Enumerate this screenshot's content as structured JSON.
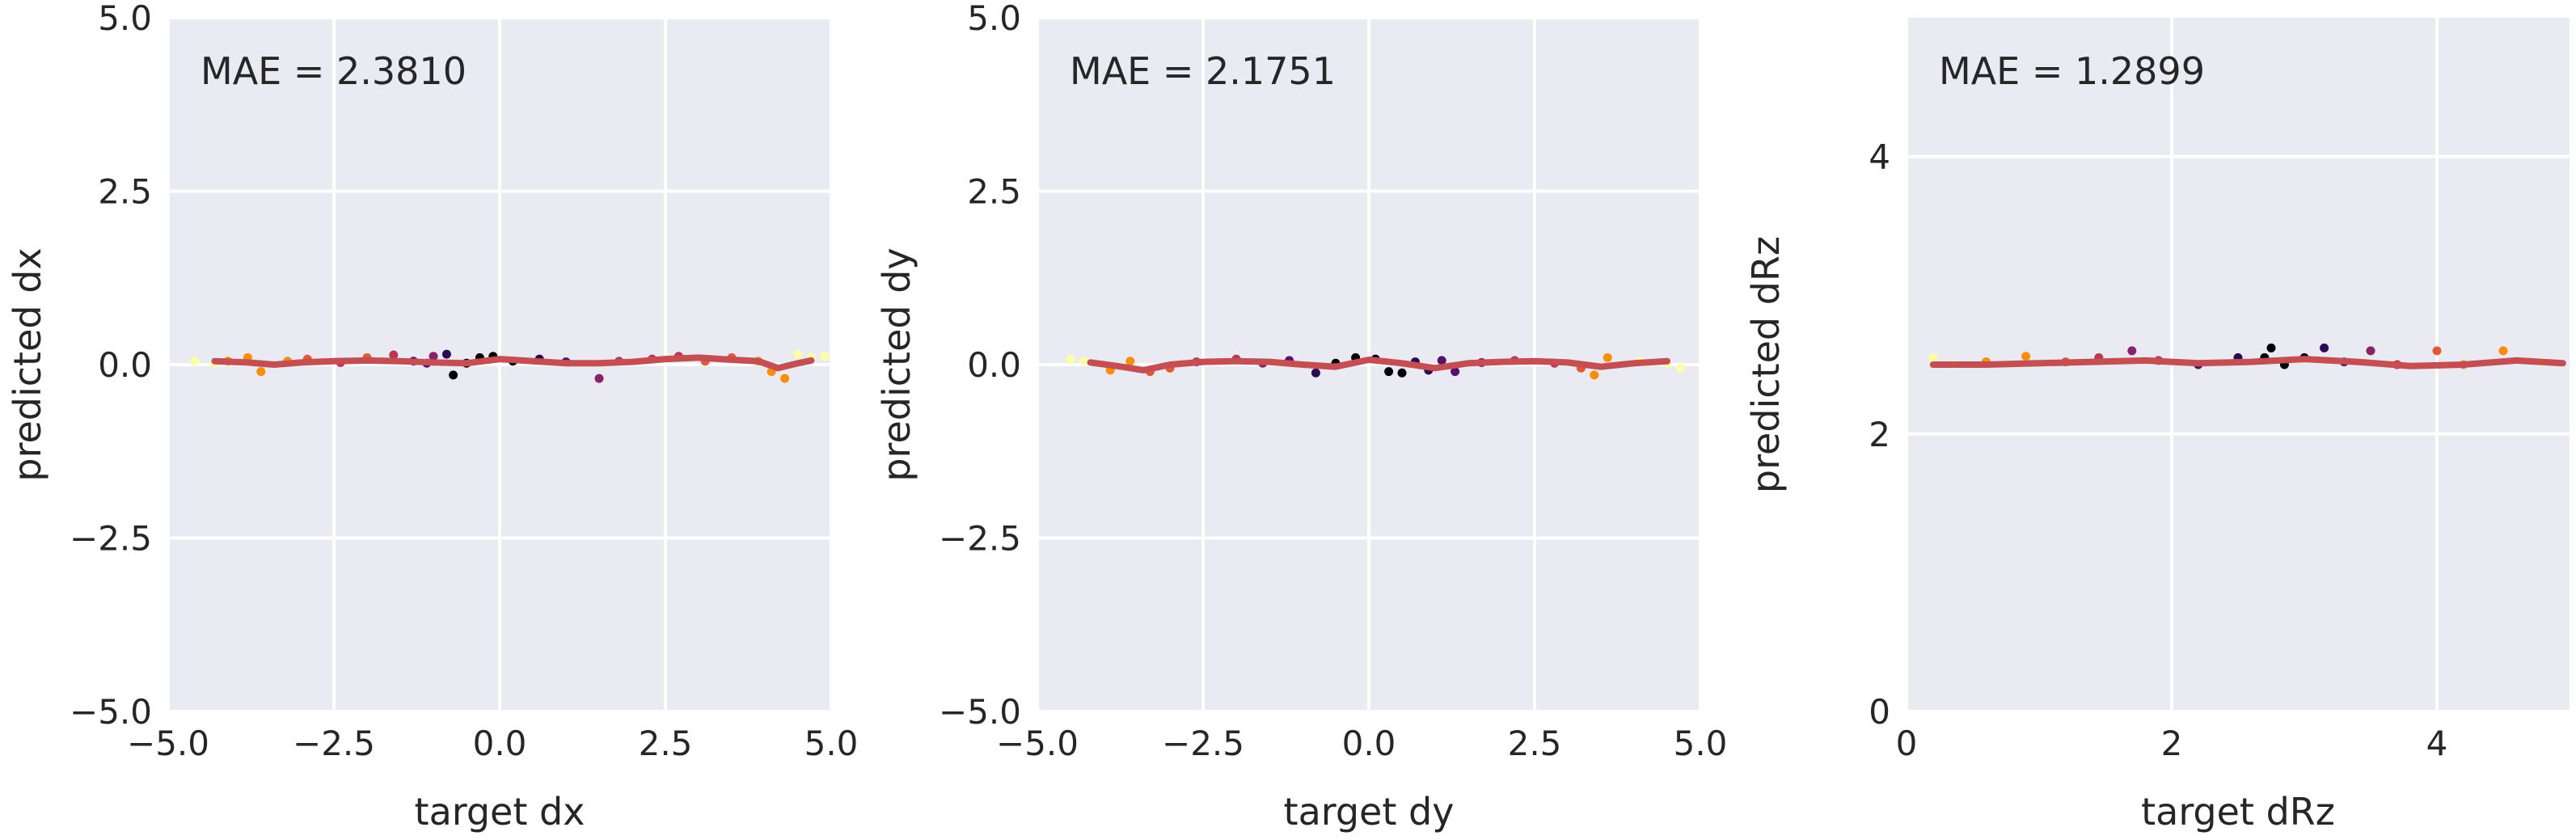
{
  "figure": {
    "background": "#ffffff",
    "panel_bg": "#eaeaf2",
    "grid_color": "#ffffff",
    "trend_color": "#c44e52",
    "text_color": "#262626"
  },
  "chart_data": [
    {
      "type": "scatter",
      "title": "",
      "annotation": "MAE = 2.3810",
      "xlabel": "target dx",
      "ylabel": "predicted dx",
      "xlim": [
        -5.0,
        5.0
      ],
      "ylim": [
        -5.0,
        5.0
      ],
      "xticks": [
        -5.0,
        -2.5,
        0.0,
        2.5,
        5.0
      ],
      "yticks": [
        -5.0,
        -2.5,
        0.0,
        2.5,
        5.0
      ],
      "xtick_labels": [
        "−5.0",
        "−2.5",
        "0.0",
        "2.5",
        "5.0"
      ],
      "ytick_labels": [
        "−5.0",
        "−2.5",
        "0.0",
        "2.5",
        "5.0"
      ],
      "points": [
        {
          "x": -4.6,
          "y": 0.05,
          "c": "#fcffa4"
        },
        {
          "x": -4.3,
          "y": 0.02,
          "c": "#fcffa4"
        },
        {
          "x": -4.1,
          "y": 0.05,
          "c": "#f98e09"
        },
        {
          "x": -3.8,
          "y": 0.1,
          "c": "#f98e09"
        },
        {
          "x": -3.6,
          "y": -0.1,
          "c": "#f98e09"
        },
        {
          "x": -3.2,
          "y": 0.05,
          "c": "#f98e09"
        },
        {
          "x": -2.9,
          "y": 0.08,
          "c": "#e35933"
        },
        {
          "x": -2.4,
          "y": 0.03,
          "c": "#bc3754"
        },
        {
          "x": -2.0,
          "y": 0.1,
          "c": "#e35933"
        },
        {
          "x": -1.6,
          "y": 0.14,
          "c": "#bc3754"
        },
        {
          "x": -1.3,
          "y": 0.05,
          "c": "#57106e"
        },
        {
          "x": -1.1,
          "y": 0.02,
          "c": "#57106e"
        },
        {
          "x": -1.0,
          "y": 0.12,
          "c": "#8a226a"
        },
        {
          "x": -0.8,
          "y": 0.15,
          "c": "#280b54"
        },
        {
          "x": -0.7,
          "y": -0.15,
          "c": "#000004"
        },
        {
          "x": -0.5,
          "y": 0.02,
          "c": "#000004"
        },
        {
          "x": -0.3,
          "y": 0.1,
          "c": "#000004"
        },
        {
          "x": -0.1,
          "y": 0.12,
          "c": "#000004"
        },
        {
          "x": 0.2,
          "y": 0.05,
          "c": "#000004"
        },
        {
          "x": 0.6,
          "y": 0.08,
          "c": "#280b54"
        },
        {
          "x": 1.0,
          "y": 0.04,
          "c": "#57106e"
        },
        {
          "x": 1.5,
          "y": -0.2,
          "c": "#8a226a"
        },
        {
          "x": 1.8,
          "y": 0.05,
          "c": "#bc3754"
        },
        {
          "x": 2.3,
          "y": 0.08,
          "c": "#bc3754"
        },
        {
          "x": 2.7,
          "y": 0.12,
          "c": "#bc3754"
        },
        {
          "x": 3.1,
          "y": 0.05,
          "c": "#e35933"
        },
        {
          "x": 3.5,
          "y": 0.1,
          "c": "#e35933"
        },
        {
          "x": 3.9,
          "y": 0.05,
          "c": "#f98e09"
        },
        {
          "x": 4.1,
          "y": -0.1,
          "c": "#f98e09"
        },
        {
          "x": 4.3,
          "y": -0.2,
          "c": "#f98e09"
        },
        {
          "x": 4.5,
          "y": 0.15,
          "c": "#fcffa4"
        },
        {
          "x": 4.7,
          "y": 0.1,
          "c": "#fcffa4"
        },
        {
          "x": 4.9,
          "y": 0.12,
          "c": "#fcffa4"
        }
      ],
      "trend": {
        "x": [
          -4.3,
          -3.8,
          -3.4,
          -3.0,
          -2.5,
          -2.0,
          -1.5,
          -1.0,
          -0.5,
          0.0,
          0.5,
          1.0,
          1.5,
          2.0,
          2.5,
          3.0,
          3.5,
          3.9,
          4.2,
          4.5,
          4.7
        ],
        "y": [
          0.05,
          0.03,
          0.0,
          0.03,
          0.05,
          0.06,
          0.05,
          0.03,
          0.02,
          0.08,
          0.05,
          0.02,
          0.02,
          0.04,
          0.08,
          0.1,
          0.07,
          0.05,
          -0.05,
          0.02,
          0.06
        ]
      }
    },
    {
      "type": "scatter",
      "title": "",
      "annotation": "MAE = 2.1751",
      "xlabel": "target dy",
      "ylabel": "predicted dy",
      "xlim": [
        -5.0,
        5.0
      ],
      "ylim": [
        -5.0,
        5.0
      ],
      "xticks": [
        -5.0,
        -2.5,
        0.0,
        2.5,
        5.0
      ],
      "yticks": [
        -5.0,
        -2.5,
        0.0,
        2.5,
        5.0
      ],
      "xtick_labels": [
        "−5.0",
        "−2.5",
        "0.0",
        "2.5",
        "5.0"
      ],
      "ytick_labels": [
        "−5.0",
        "−2.5",
        "0.0",
        "2.5",
        "5.0"
      ],
      "points": [
        {
          "x": -4.5,
          "y": 0.08,
          "c": "#fcffa4"
        },
        {
          "x": -4.3,
          "y": 0.05,
          "c": "#fcffa4"
        },
        {
          "x": -3.9,
          "y": -0.08,
          "c": "#f98e09"
        },
        {
          "x": -3.6,
          "y": 0.05,
          "c": "#f98e09"
        },
        {
          "x": -3.3,
          "y": -0.1,
          "c": "#e35933"
        },
        {
          "x": -3.0,
          "y": -0.05,
          "c": "#e35933"
        },
        {
          "x": -2.6,
          "y": 0.04,
          "c": "#bc3754"
        },
        {
          "x": -2.0,
          "y": 0.08,
          "c": "#bc3754"
        },
        {
          "x": -1.6,
          "y": 0.02,
          "c": "#8a226a"
        },
        {
          "x": -1.2,
          "y": 0.06,
          "c": "#57106e"
        },
        {
          "x": -0.8,
          "y": -0.12,
          "c": "#280b54"
        },
        {
          "x": -0.5,
          "y": 0.02,
          "c": "#000004"
        },
        {
          "x": -0.2,
          "y": 0.1,
          "c": "#000004"
        },
        {
          "x": 0.1,
          "y": 0.08,
          "c": "#000004"
        },
        {
          "x": 0.3,
          "y": -0.1,
          "c": "#000004"
        },
        {
          "x": 0.5,
          "y": -0.12,
          "c": "#000004"
        },
        {
          "x": 0.7,
          "y": 0.04,
          "c": "#280b54"
        },
        {
          "x": 0.9,
          "y": -0.08,
          "c": "#280b54"
        },
        {
          "x": 1.1,
          "y": 0.06,
          "c": "#57106e"
        },
        {
          "x": 1.3,
          "y": -0.1,
          "c": "#57106e"
        },
        {
          "x": 1.7,
          "y": 0.03,
          "c": "#8a226a"
        },
        {
          "x": 2.2,
          "y": 0.06,
          "c": "#bc3754"
        },
        {
          "x": 2.8,
          "y": 0.02,
          "c": "#bc3754"
        },
        {
          "x": 3.2,
          "y": -0.05,
          "c": "#e35933"
        },
        {
          "x": 3.4,
          "y": -0.15,
          "c": "#f98e09"
        },
        {
          "x": 3.6,
          "y": 0.1,
          "c": "#f98e09"
        },
        {
          "x": 4.1,
          "y": 0.05,
          "c": "#fcffa4"
        },
        {
          "x": 4.5,
          "y": 0.02,
          "c": "#fcffa4"
        },
        {
          "x": 4.7,
          "y": -0.05,
          "c": "#fcffa4"
        }
      ],
      "trend": {
        "x": [
          -4.2,
          -3.8,
          -3.4,
          -3.0,
          -2.5,
          -2.0,
          -1.5,
          -1.0,
          -0.5,
          0.0,
          0.5,
          1.0,
          1.5,
          2.0,
          2.5,
          3.0,
          3.5,
          4.0,
          4.5
        ],
        "y": [
          0.03,
          -0.02,
          -0.08,
          0.0,
          0.04,
          0.05,
          0.04,
          0.0,
          -0.03,
          0.07,
          0.02,
          -0.05,
          0.02,
          0.04,
          0.05,
          0.03,
          -0.03,
          0.02,
          0.05
        ]
      }
    },
    {
      "type": "scatter",
      "title": "",
      "annotation": "MAE = 1.2899",
      "xlabel": "target dRz",
      "ylabel": "predicted dRz",
      "xlim": [
        0,
        5
      ],
      "ylim": [
        0,
        5
      ],
      "xticks": [
        0,
        2,
        4
      ],
      "yticks": [
        0,
        2,
        4
      ],
      "xtick_labels": [
        "0",
        "2",
        "4"
      ],
      "ytick_labels": [
        "0",
        "2",
        "4"
      ],
      "points": [
        {
          "x": 0.2,
          "y": 2.55,
          "c": "#fcffa4"
        },
        {
          "x": 0.35,
          "y": 2.5,
          "c": "#fcffa4"
        },
        {
          "x": 0.6,
          "y": 2.52,
          "c": "#f98e09"
        },
        {
          "x": 0.9,
          "y": 2.56,
          "c": "#f98e09"
        },
        {
          "x": 1.2,
          "y": 2.52,
          "c": "#e35933"
        },
        {
          "x": 1.45,
          "y": 2.55,
          "c": "#bc3754"
        },
        {
          "x": 1.7,
          "y": 2.6,
          "c": "#8a226a"
        },
        {
          "x": 1.9,
          "y": 2.53,
          "c": "#bc3754"
        },
        {
          "x": 2.2,
          "y": 2.5,
          "c": "#57106e"
        },
        {
          "x": 2.5,
          "y": 2.55,
          "c": "#280b54"
        },
        {
          "x": 2.7,
          "y": 2.55,
          "c": "#000004"
        },
        {
          "x": 2.75,
          "y": 2.62,
          "c": "#000004"
        },
        {
          "x": 2.85,
          "y": 2.5,
          "c": "#000004"
        },
        {
          "x": 3.0,
          "y": 2.55,
          "c": "#000004"
        },
        {
          "x": 3.15,
          "y": 2.62,
          "c": "#280b54"
        },
        {
          "x": 3.3,
          "y": 2.52,
          "c": "#57106e"
        },
        {
          "x": 3.5,
          "y": 2.6,
          "c": "#8a226a"
        },
        {
          "x": 3.7,
          "y": 2.5,
          "c": "#bc3754"
        },
        {
          "x": 4.0,
          "y": 2.6,
          "c": "#e35933"
        },
        {
          "x": 4.2,
          "y": 2.5,
          "c": "#f98e09"
        },
        {
          "x": 4.5,
          "y": 2.6,
          "c": "#f98e09"
        },
        {
          "x": 4.8,
          "y": 2.52,
          "c": "#fcffa4"
        }
      ],
      "trend": {
        "x": [
          0.2,
          0.6,
          1.0,
          1.4,
          1.8,
          2.2,
          2.6,
          3.0,
          3.4,
          3.8,
          4.2,
          4.6,
          4.95
        ],
        "y": [
          2.5,
          2.5,
          2.51,
          2.52,
          2.53,
          2.51,
          2.52,
          2.54,
          2.52,
          2.49,
          2.5,
          2.53,
          2.51
        ]
      }
    }
  ]
}
